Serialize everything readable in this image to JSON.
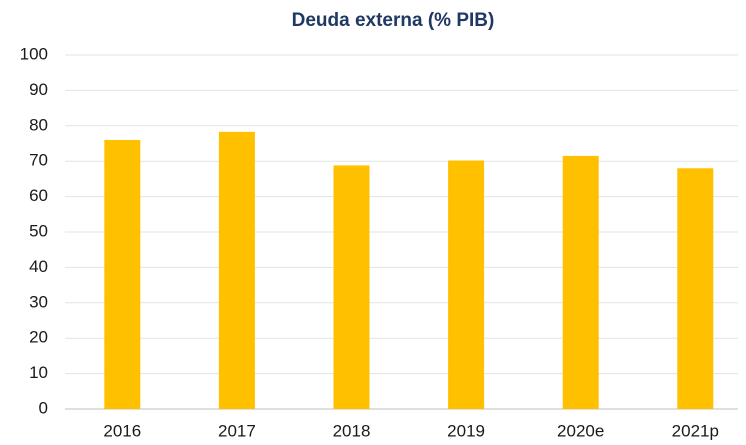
{
  "chart_data": {
    "type": "bar",
    "title": "Deuda externa (% PIB)",
    "categories": [
      "2016",
      "2017",
      "2018",
      "2019",
      "2020e",
      "2021p"
    ],
    "values": [
      76,
      78.3,
      68.8,
      70.2,
      71.5,
      68
    ],
    "color": "#ffc000",
    "ylim": [
      0,
      100
    ],
    "yticks": [
      0,
      10,
      20,
      30,
      40,
      50,
      60,
      70,
      80,
      90,
      100
    ],
    "grid": true
  }
}
